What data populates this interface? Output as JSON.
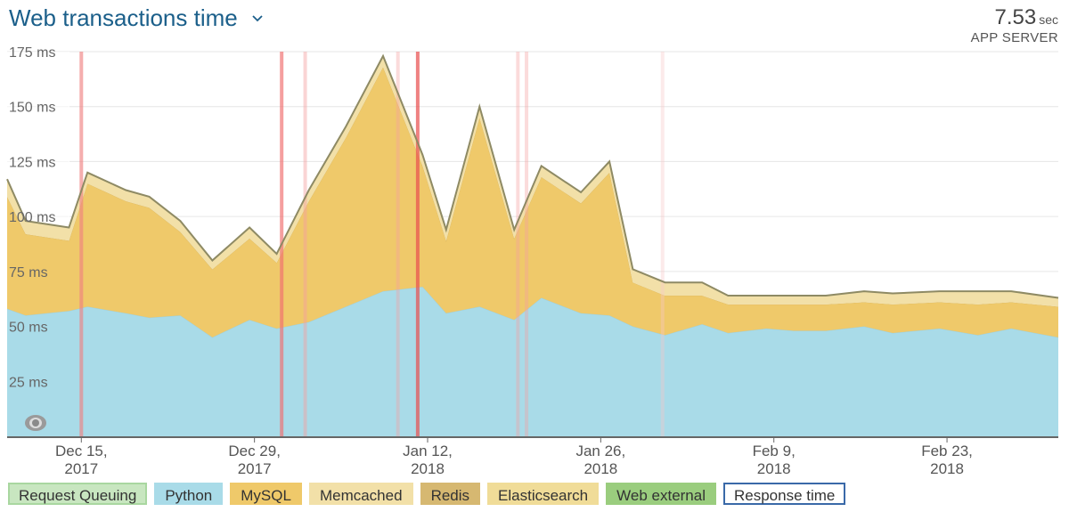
{
  "header": {
    "title": "Web transactions time",
    "total_value": "7.53",
    "total_unit": "sec",
    "total_label": "APP SERVER"
  },
  "chart_data": {
    "type": "area",
    "stacked": true,
    "title": "Web transactions time",
    "y_unit": "ms",
    "ylim": [
      0,
      175
    ],
    "y_ticks": [
      25,
      50,
      75,
      100,
      125,
      150,
      175
    ],
    "y_tick_labels": [
      "25 ms",
      "50 ms",
      "75 ms",
      "100 ms",
      "125 ms",
      "150 ms",
      "175 ms"
    ],
    "x_ticks": [
      {
        "line1": "Dec 15,",
        "line2": "2017",
        "x": 6
      },
      {
        "line1": "Dec 29,",
        "line2": "2017",
        "x": 20
      },
      {
        "line1": "Jan 12,",
        "line2": "2018",
        "x": 34
      },
      {
        "line1": "Jan 26,",
        "line2": "2018",
        "x": 48
      },
      {
        "line1": "Feb 9,",
        "line2": "2018",
        "x": 62
      },
      {
        "line1": "Feb 23,",
        "line2": "2018",
        "x": 76
      }
    ],
    "xlim": [
      0,
      85
    ],
    "x": [
      0,
      1.5,
      5,
      6.5,
      9.6,
      11.5,
      14,
      16.6,
      19.6,
      21.8,
      24.4,
      27.4,
      30.4,
      33.6,
      35.5,
      38.2,
      41,
      43.2,
      46.4,
      48.7,
      50.6,
      53.2,
      56.2,
      58.3,
      61.4,
      63.6,
      66.2,
      69.3,
      71.6,
      75.4,
      78.5,
      81.2,
      85
    ],
    "series": [
      {
        "name": "Python",
        "color": "#a9dbe8",
        "values": [
          58,
          55,
          57,
          59,
          56,
          54,
          55,
          45,
          53,
          49,
          52,
          59,
          66,
          68,
          56,
          59,
          53,
          63,
          56,
          55,
          50,
          46,
          51,
          47,
          49,
          48,
          48,
          50,
          47,
          49,
          46,
          49,
          45
        ]
      },
      {
        "name": "MySQL",
        "color": "#efc96a",
        "values": [
          51,
          37,
          32,
          56,
          51,
          50,
          38,
          31,
          37,
          30,
          55,
          77,
          102,
          55,
          33,
          86,
          37,
          55,
          50,
          65,
          20,
          18,
          13,
          13,
          11,
          12,
          12,
          11,
          13,
          12,
          14,
          12,
          14
        ]
      },
      {
        "name": "Memcached",
        "color": "#f2e0a8",
        "values": [
          8,
          6,
          6,
          5,
          5,
          5,
          5,
          4,
          5,
          4,
          5,
          5,
          5,
          5,
          5,
          5,
          4,
          5,
          5,
          5,
          6,
          6,
          6,
          4,
          4,
          4,
          4,
          5,
          5,
          5,
          6,
          5,
          4
        ]
      }
    ],
    "response_time_line_color": "#8e8a64",
    "response_time": [
      117,
      98,
      95,
      120,
      112,
      109,
      98,
      80,
      95,
      83,
      112,
      141,
      173,
      128,
      94,
      150,
      94,
      123,
      111,
      125,
      76,
      70,
      70,
      64,
      64,
      64,
      64,
      66,
      65,
      66,
      66,
      66,
      63
    ],
    "event_markers": [
      {
        "x": 6.0,
        "color": "#f08080",
        "opacity": 0.85
      },
      {
        "x": 22.2,
        "color": "#f07070",
        "opacity": 0.9
      },
      {
        "x": 24.1,
        "color": "#f4a0a0",
        "opacity": 0.6
      },
      {
        "x": 31.6,
        "color": "#f4a0a0",
        "opacity": 0.5
      },
      {
        "x": 33.2,
        "color": "#e85050",
        "opacity": 0.95
      },
      {
        "x": 41.3,
        "color": "#f4a0a0",
        "opacity": 0.5
      },
      {
        "x": 42.0,
        "color": "#f4a0a0",
        "opacity": 0.5
      },
      {
        "x": 53.0,
        "color": "#f8c8c8",
        "opacity": 0.5
      }
    ],
    "shaded_region_end": 5,
    "legend_position": "bottom"
  },
  "legend": [
    {
      "label": "Request Queuing",
      "style": "outline",
      "color": "#c8e6c0",
      "border": "#a9d7a0"
    },
    {
      "label": "Python",
      "style": "fill",
      "color": "#a9dbe8",
      "border": "#a9dbe8"
    },
    {
      "label": "MySQL",
      "style": "fill",
      "color": "#efc96a",
      "border": "#efc96a"
    },
    {
      "label": "Memcached",
      "style": "fill",
      "color": "#f2e0a8",
      "border": "#f2e0a8"
    },
    {
      "label": "Redis",
      "style": "fill",
      "color": "#d6b871",
      "border": "#d6b871"
    },
    {
      "label": "Elasticsearch",
      "style": "fill",
      "color": "#f0dc98",
      "border": "#f0dc98"
    },
    {
      "label": "Web external",
      "style": "fill",
      "color": "#9acd7e",
      "border": "#9acd7e"
    },
    {
      "label": "Response time",
      "style": "outline",
      "color": "#ffffff",
      "border": "#3a69a8"
    }
  ]
}
